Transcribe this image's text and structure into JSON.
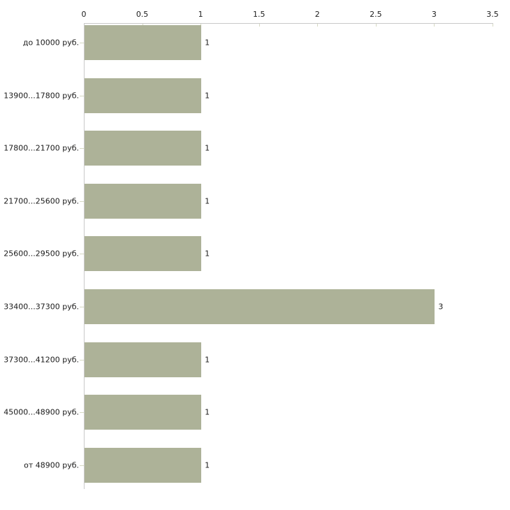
{
  "chart_data": {
    "type": "bar",
    "orientation": "horizontal",
    "title": "",
    "xlabel": "",
    "ylabel": "",
    "categories": [
      "до 10000 руб.",
      "13900...17800 руб.",
      "17800...21700 руб.",
      "21700...25600 руб.",
      "25600...29500 руб.",
      "33400...37300 руб.",
      "37300...41200 руб.",
      "45000...48900 руб.",
      "от 48900 руб."
    ],
    "values": [
      1,
      1,
      1,
      1,
      1,
      3,
      1,
      1,
      1
    ],
    "value_labels": [
      "1",
      "1",
      "1",
      "1",
      "1",
      "3",
      "1",
      "1",
      "1"
    ],
    "xlim": [
      0,
      3.5
    ],
    "xticks": [
      0,
      0.5,
      1,
      1.5,
      2,
      2.5,
      3,
      3.5
    ],
    "xtick_labels": [
      "0",
      "0.5",
      "1",
      "1.5",
      "2",
      "2.5",
      "3",
      "3.5"
    ],
    "legend": null,
    "grid": false,
    "axis_position": "top-left",
    "colors": {
      "bar_fill": "#adb298",
      "axis_line": "#c9c9c9",
      "tick_mark": "#d6d9c3",
      "text": "#1a1a1a",
      "background": "#ffffff"
    }
  }
}
